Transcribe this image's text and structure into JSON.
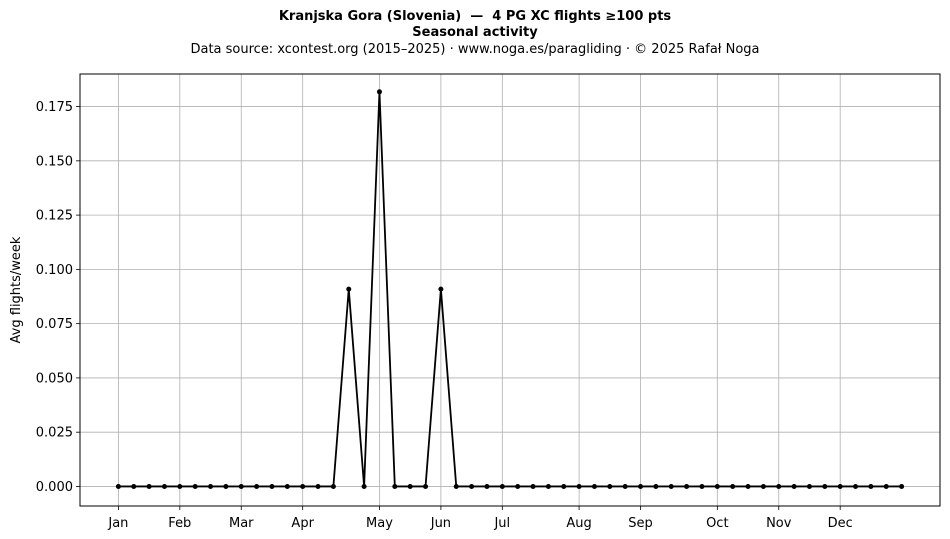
{
  "titles": {
    "main": "Kranjska Gora (Slovenia)  —  4 PG XC flights ≥100 pts",
    "sub": "Seasonal activity",
    "source": "Data source: xcontest.org (2015–2025)  ·  www.noga.es/paragliding  ·  © 2025 Rafał Noga"
  },
  "chart_data": {
    "type": "line",
    "ylabel": "Avg flights/week",
    "xlabel": "",
    "ylim": [
      -0.009,
      0.19
    ],
    "xlim": [
      -2.5,
      53.5
    ],
    "grid": true,
    "legend": "none",
    "line_color": "#000000",
    "yticks": [
      0.0,
      0.025,
      0.05,
      0.075,
      0.1,
      0.125,
      0.15,
      0.175
    ],
    "ytick_labels": [
      "0.000",
      "0.025",
      "0.050",
      "0.075",
      "0.100",
      "0.125",
      "0.150",
      "0.175"
    ],
    "xticks": [
      0,
      4,
      8,
      12,
      17,
      21,
      25,
      30,
      34,
      39,
      43,
      47
    ],
    "xtick_labels": [
      "Jan",
      "Feb",
      "Mar",
      "Apr",
      "May",
      "Jun",
      "Jul",
      "Aug",
      "Sep",
      "Oct",
      "Nov",
      "Dec"
    ],
    "x": [
      0,
      1,
      2,
      3,
      4,
      5,
      6,
      7,
      8,
      9,
      10,
      11,
      12,
      13,
      14,
      15,
      16,
      17,
      18,
      19,
      20,
      21,
      22,
      23,
      24,
      25,
      26,
      27,
      28,
      29,
      30,
      31,
      32,
      33,
      34,
      35,
      36,
      37,
      38,
      39,
      40,
      41,
      42,
      43,
      44,
      45,
      46,
      47,
      48,
      49,
      50,
      51
    ],
    "values": [
      0,
      0,
      0,
      0,
      0,
      0,
      0,
      0,
      0,
      0,
      0,
      0,
      0,
      0,
      0,
      0.0909,
      0,
      0.1818,
      0,
      0,
      0,
      0.0909,
      0,
      0,
      0,
      0,
      0,
      0,
      0,
      0,
      0,
      0,
      0,
      0,
      0,
      0,
      0,
      0,
      0,
      0,
      0,
      0,
      0,
      0,
      0,
      0,
      0,
      0,
      0,
      0,
      0,
      0
    ]
  }
}
